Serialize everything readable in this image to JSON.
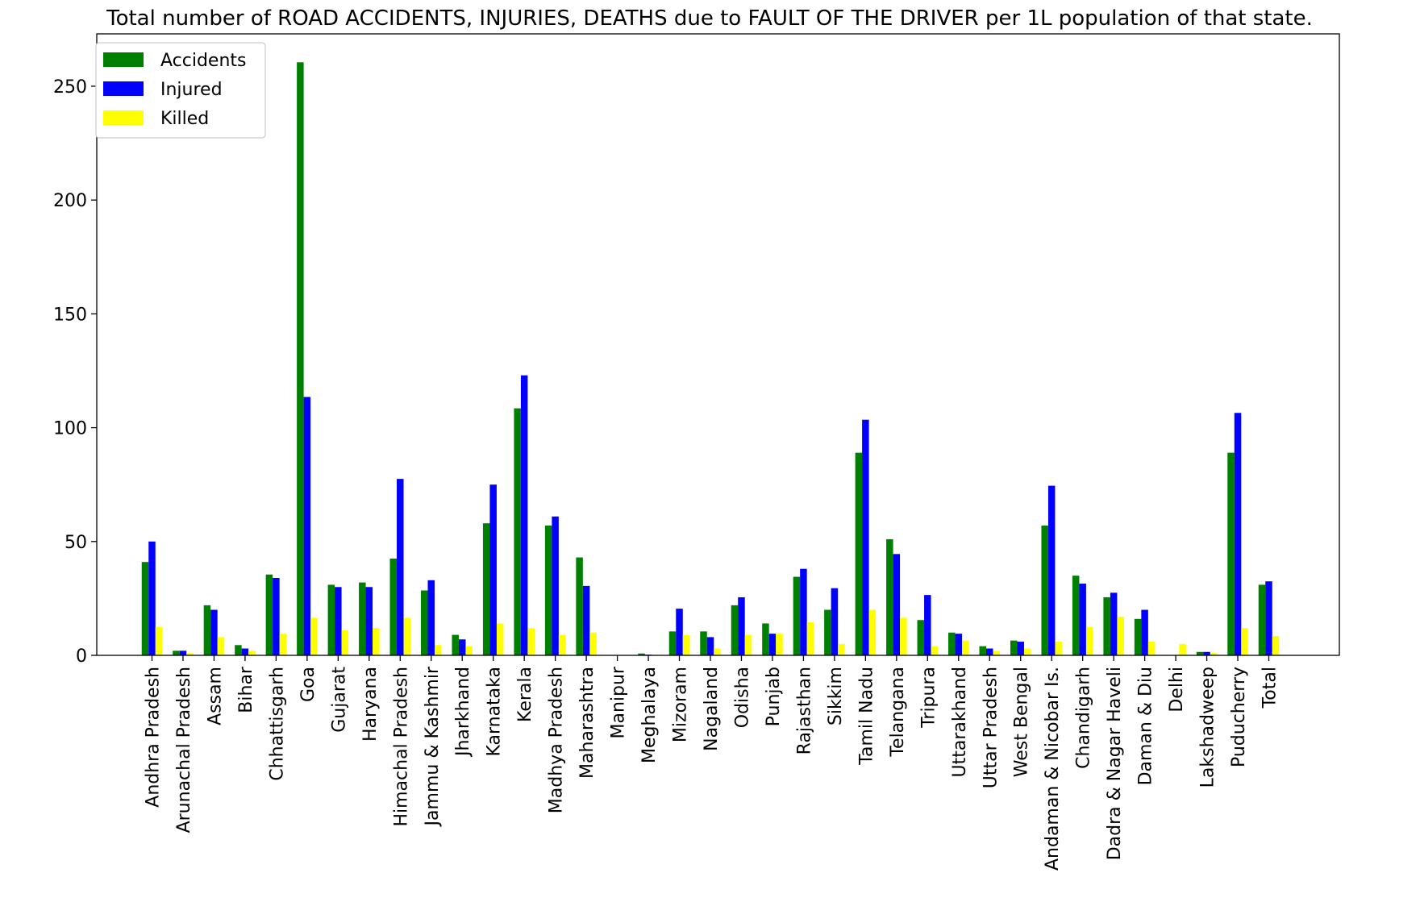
{
  "chart_data": {
    "type": "bar",
    "title": "Total number of ROAD ACCIDENTS, INJURIES, DEATHS due to FAULT OF THE DRIVER per 1L population of that state.",
    "xlabel": "",
    "ylabel": "",
    "ylim": [
      0,
      273
    ],
    "yticks": [
      0,
      50,
      100,
      150,
      200,
      250
    ],
    "grid": false,
    "legend_position": "top-left",
    "categories": [
      "Andhra Pradesh",
      "Arunachal Pradesh",
      "Assam",
      "Bihar",
      "Chhattisgarh",
      "Goa",
      "Gujarat",
      "Haryana",
      "Himachal Pradesh",
      "Jammu & Kashmir",
      "Jharkhand",
      "Karnataka",
      "Kerala",
      "Madhya Pradesh",
      "Maharashtra",
      "Manipur",
      "Meghalaya",
      "Mizoram",
      "Nagaland",
      "Odisha",
      "Punjab",
      "Rajasthan",
      "Sikkim",
      "Tamil Nadu",
      "Telangana",
      "Tripura",
      "Uttarakhand",
      "Uttar Pradesh",
      "West Bengal",
      "Andaman & Nicobar Is.",
      "Chandigarh",
      "Dadra & Nagar Haveli",
      "Daman & Diu",
      "Delhi",
      "Lakshadweep",
      "Puducherry",
      "Total"
    ],
    "series": [
      {
        "name": "Accidents",
        "color": "#008000",
        "values": [
          41,
          2,
          22,
          4.5,
          35.5,
          260.5,
          31,
          32,
          42.5,
          28.5,
          9,
          58,
          108.5,
          57,
          43,
          0,
          0.8,
          10.5,
          10.5,
          22,
          14,
          34.5,
          20,
          89,
          51,
          15.5,
          10,
          4,
          6.5,
          57,
          35,
          25.5,
          16,
          0,
          1.5,
          89,
          31
        ]
      },
      {
        "name": "Injured",
        "color": "#0000ff",
        "values": [
          50,
          2,
          20,
          3,
          34,
          113.5,
          30,
          30,
          77.5,
          33,
          7,
          75,
          123,
          61,
          30.5,
          0,
          0.3,
          20.5,
          8,
          25.5,
          9.5,
          38,
          29.5,
          103.5,
          44.5,
          26.5,
          9.5,
          3,
          6,
          74.5,
          31.5,
          27.5,
          20,
          0,
          1.5,
          106.5,
          32.5
        ]
      },
      {
        "name": "Killed",
        "color": "#ffff00",
        "values": [
          12.5,
          1,
          8,
          2,
          9.5,
          16.5,
          11,
          12,
          16.5,
          4.5,
          4,
          14,
          12,
          9,
          10,
          0,
          0.2,
          9,
          3,
          9,
          9.5,
          14.5,
          5,
          20,
          16.5,
          4,
          6.5,
          2,
          3,
          6,
          12.5,
          17,
          6,
          5,
          1,
          12,
          8.5
        ]
      }
    ]
  }
}
